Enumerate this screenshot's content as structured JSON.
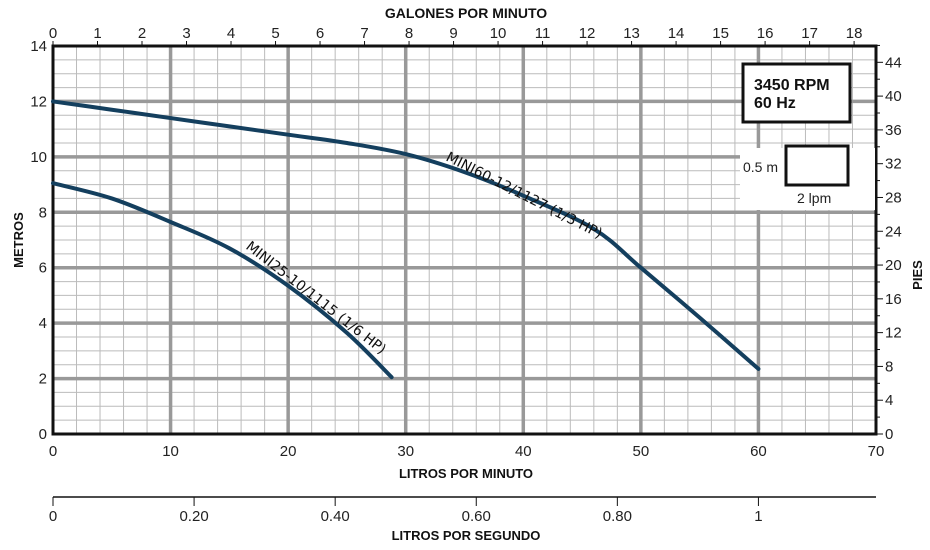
{
  "chart_data": {
    "type": "line",
    "title": "",
    "xlabel": "LITROS POR MINUTO",
    "ylabel": "METROS",
    "x2label": "GALONES POR MINUTO",
    "y2label": "PIES",
    "x3label": "LITROS POR SEGUNDO",
    "xlim": [
      0,
      70
    ],
    "ylim": [
      0,
      14
    ],
    "xticks": [
      0,
      10,
      20,
      30,
      40,
      50,
      60,
      70
    ],
    "yticks": [
      0,
      2,
      4,
      6,
      8,
      10,
      12,
      14
    ],
    "x2ticks": [
      0,
      1,
      2,
      3,
      4,
      5,
      6,
      7,
      8,
      9,
      10,
      11,
      12,
      13,
      14,
      15,
      16,
      17,
      18
    ],
    "y2ticks": [
      0,
      4,
      8,
      12,
      16,
      20,
      24,
      28,
      32,
      36,
      40,
      44
    ],
    "x3ticks": [
      "0",
      "0.20",
      "0.40",
      "0.60",
      "0.80",
      "1"
    ],
    "x3values": [
      0,
      0.2,
      0.4,
      0.6,
      0.8,
      1
    ],
    "grid": true,
    "series": [
      {
        "name": "MINI60-12/1127 (1/3 HP)",
        "color": "#143f5e",
        "x": [
          0,
          5,
          10,
          15,
          20,
          25,
          30,
          35,
          40,
          46,
          50,
          55,
          60
        ],
        "y": [
          12,
          11.7,
          11.4,
          11.1,
          10.8,
          10.5,
          10.1,
          9.45,
          8.6,
          7.4,
          6.0,
          4.2,
          2.35
        ]
      },
      {
        "name": "MINI25-10/1115 (1/6 HP)",
        "color": "#143f5e",
        "x": [
          0,
          5,
          10,
          15,
          20,
          25,
          28.8
        ],
        "y": [
          9.05,
          8.5,
          7.65,
          6.7,
          5.35,
          3.65,
          2.05
        ]
      }
    ],
    "annotations": {
      "speed": "3450 RPM",
      "freq": "60 Hz",
      "scale_y": "0.5 m",
      "scale_x": "2 lpm"
    }
  }
}
